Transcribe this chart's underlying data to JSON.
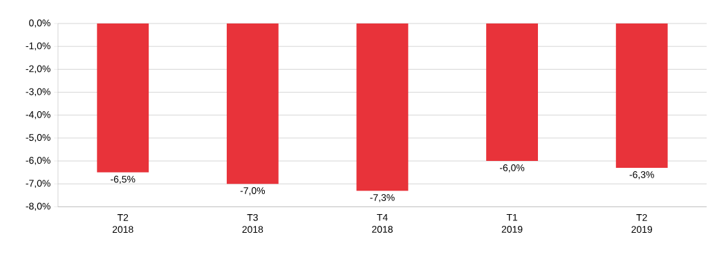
{
  "chart_data": {
    "type": "bar",
    "categories": [
      "T2 2018",
      "T3 2018",
      "T4 2018",
      "T1 2019",
      "T2 2019"
    ],
    "values": [
      -6.5,
      -7.0,
      -7.3,
      -6.0,
      -6.3
    ],
    "value_labels": [
      "-6,5%",
      "-7,0%",
      "-7,3%",
      "-6,0%",
      "-6,3%"
    ],
    "color": "#e8333a",
    "ylim": [
      -8,
      0
    ],
    "yticks": [
      {
        "value": 0,
        "label": "0,0%"
      },
      {
        "value": -1,
        "label": "-1,0%"
      },
      {
        "value": -2,
        "label": "-2,0%"
      },
      {
        "value": -3,
        "label": "-3,0%"
      },
      {
        "value": -4,
        "label": "-4,0%"
      },
      {
        "value": -5,
        "label": "-5,0%"
      },
      {
        "value": -6,
        "label": "-6,0%"
      },
      {
        "value": -7,
        "label": "-7,0%"
      },
      {
        "value": -8,
        "label": "-8,0%"
      }
    ],
    "grid": "y"
  }
}
